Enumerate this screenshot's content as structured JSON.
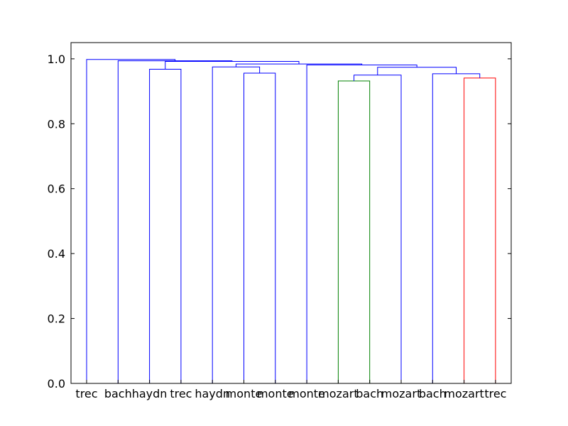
{
  "chart_data": {
    "type": "dendrogram",
    "title": "",
    "xlabel": "",
    "ylabel": "",
    "ylim": [
      0,
      1.05
    ],
    "yticks": [
      0.0,
      0.2,
      0.4,
      0.6,
      0.8,
      1.0
    ],
    "ytick_labels": [
      "0.0",
      "0.2",
      "0.4",
      "0.6",
      "0.8",
      "1.0"
    ],
    "leaves": [
      "trec",
      "bach",
      "haydn",
      "trec",
      "haydn",
      "monte",
      "monte",
      "monte",
      "mozart",
      "bach",
      "mozart",
      "bach",
      "mozart",
      "trec"
    ],
    "colors": {
      "blue": "#0000ff",
      "green": "#008000",
      "red": "#ff0000"
    },
    "merges": [
      {
        "id": "m1",
        "left": "L9",
        "right": "L10",
        "height": 0.932,
        "color": "green"
      },
      {
        "id": "m2",
        "left": "L13",
        "right": "L14",
        "height": 0.941,
        "color": "red"
      },
      {
        "id": "m3",
        "left": "L12",
        "right": "m2",
        "height": 0.954,
        "color": "blue"
      },
      {
        "id": "m4",
        "left": "L6",
        "right": "L7",
        "height": 0.956,
        "color": "blue"
      },
      {
        "id": "m5",
        "left": "L3",
        "right": "L4",
        "height": 0.968,
        "color": "blue"
      },
      {
        "id": "m6",
        "left": "L11",
        "right": "m1",
        "height": 0.95,
        "color": "blue"
      },
      {
        "id": "m7",
        "left": "m6",
        "right": "m3",
        "height": 0.974,
        "color": "blue"
      },
      {
        "id": "m8",
        "left": "L5",
        "right": "m4",
        "height": 0.975,
        "color": "blue"
      },
      {
        "id": "m9",
        "left": "L8",
        "right": "m7",
        "height": 0.981,
        "color": "blue"
      },
      {
        "id": "m10",
        "left": "m8",
        "right": "m9",
        "height": 0.984,
        "color": "blue"
      },
      {
        "id": "m11",
        "left": "m5",
        "right": "m10",
        "height": 0.992,
        "color": "blue"
      },
      {
        "id": "m12",
        "left": "L2",
        "right": "m11",
        "height": 0.994,
        "color": "blue"
      },
      {
        "id": "m13",
        "left": "L1",
        "right": "m12",
        "height": 0.998,
        "color": "blue"
      }
    ]
  }
}
